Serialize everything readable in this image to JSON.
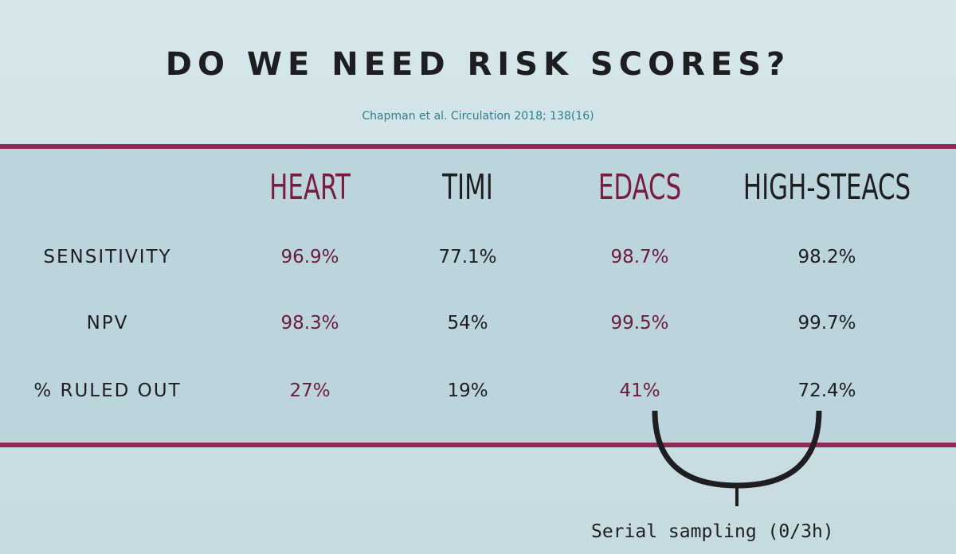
{
  "title": "DO WE NEED RISK SCORES?",
  "citation": "Chapman et al. Circulation 2018; 138(16)",
  "colors": {
    "accent": "#7a1c40",
    "rule": "#8f2a55",
    "citation": "#2d7f8f",
    "text": "#1e1e22"
  },
  "columns": [
    "HEART",
    "TIMI",
    "EDACS",
    "HIGH-STEACS"
  ],
  "rows": [
    {
      "label": "SENSITIVITY",
      "values": [
        "96.9%",
        "77.1%",
        "98.7%",
        "98.2%"
      ]
    },
    {
      "label": "NPV",
      "values": [
        "98.3%",
        "54%",
        "99.5%",
        "99.7%"
      ]
    },
    {
      "label": "% RULED OUT",
      "values": [
        "27%",
        "19%",
        "41%",
        "72.4%"
      ]
    }
  ],
  "footnote": "Serial sampling (0/3h)"
}
